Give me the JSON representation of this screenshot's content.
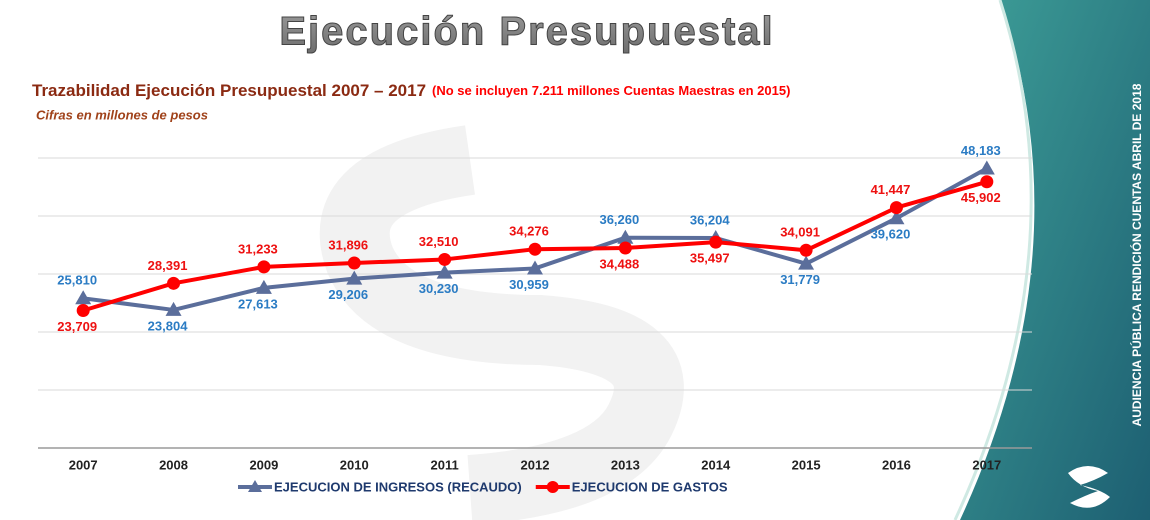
{
  "slide": {
    "title": "Ejecución Presupuestal",
    "subtitle": "Trazabilidad Ejecución Presupuestal 2007 – 2017",
    "note": "(No se incluyen 7.211 millones Cuentas Maestras en 2015)",
    "units": "Cifras en millones de pesos",
    "side_text": "AUDIENCIA PÚBLICA RENDICIÓN CUENTAS  ABRIL DE 2018"
  },
  "chart_data": {
    "type": "line",
    "categories": [
      "2007",
      "2008",
      "2009",
      "2010",
      "2011",
      "2012",
      "2013",
      "2014",
      "2015",
      "2016",
      "2017"
    ],
    "series": [
      {
        "name": "EJECUCION DE INGRESOS (RECAUDO)",
        "color": "#5b6e9b",
        "label_color": "#2b7cc4",
        "marker": "triangle",
        "values": [
          25810,
          23804,
          27613,
          29206,
          30230,
          30959,
          36260,
          36204,
          31779,
          39620,
          48183
        ],
        "value_labels": [
          "25,810",
          "23,804",
          "27,613",
          "29,206",
          "30,230",
          "30,959",
          "36,260",
          "36,204",
          "31,779",
          "39,620",
          "48,183"
        ]
      },
      {
        "name": "EJECUCION DE GASTOS",
        "color": "#ff0000",
        "label_color": "#ee1111",
        "marker": "circle",
        "values": [
          23709,
          28391,
          31233,
          31896,
          32510,
          34276,
          34488,
          35497,
          34091,
          41447,
          45902
        ],
        "value_labels": [
          "23,709",
          "28,391",
          "31,233",
          "31,896",
          "32,510",
          "34,276",
          "34,488",
          "35,497",
          "34,091",
          "41,447",
          "45,902"
        ]
      }
    ],
    "ylim": [
      0,
      50000
    ],
    "yticks": [
      0,
      10000,
      20000,
      30000,
      40000,
      50000
    ],
    "grid": true
  }
}
